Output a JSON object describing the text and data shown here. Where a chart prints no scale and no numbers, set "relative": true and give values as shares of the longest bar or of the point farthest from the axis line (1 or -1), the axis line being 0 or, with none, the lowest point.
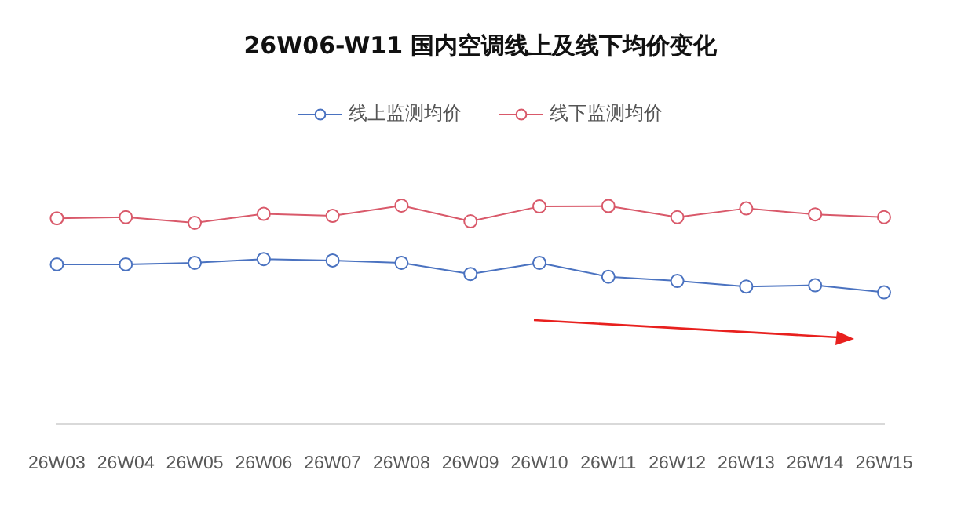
{
  "chart_data": {
    "type": "line",
    "title": "26W06-W11 国内空调线上及线下均价变化",
    "relative": true,
    "categories": [
      "26W03",
      "26W04",
      "26W05",
      "26W06",
      "26W07",
      "26W08",
      "26W09",
      "26W10",
      "26W11",
      "26W12",
      "26W13",
      "26W14",
      "26W15"
    ],
    "series": [
      {
        "name": "线上监测均价",
        "color": "#4a72c0",
        "values": [
          0.731,
          0.731,
          0.738,
          0.755,
          0.749,
          0.738,
          0.687,
          0.738,
          0.674,
          0.655,
          0.629,
          0.635,
          0.603
        ]
      },
      {
        "name": "线下监测均价",
        "color": "#d9596a",
        "values": [
          0.942,
          0.947,
          0.921,
          0.962,
          0.953,
          1,
          0.928,
          0.996,
          0.998,
          0.947,
          0.987,
          0.96,
          0.947
        ]
      }
    ],
    "legend": "top",
    "marker": "circle",
    "grid": false,
    "line_style": "solid"
  }
}
